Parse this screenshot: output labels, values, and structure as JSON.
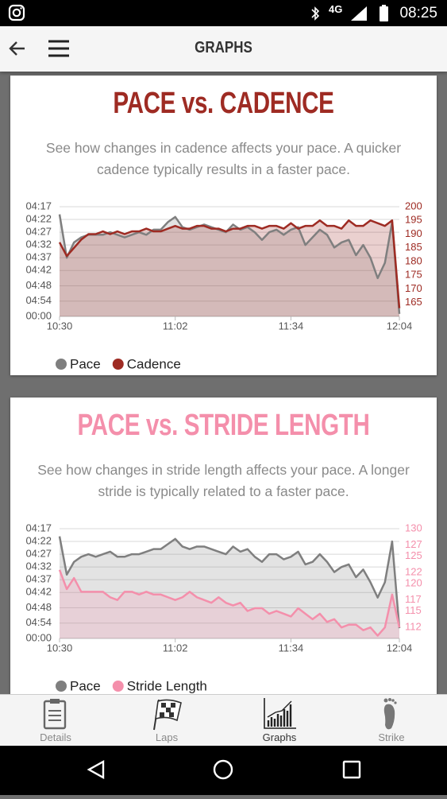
{
  "status_bar": {
    "network": "4G",
    "time": "08:25"
  },
  "header": {
    "title": "GRAPHS"
  },
  "chart_data": [
    {
      "type": "line",
      "title": "PACE vs. CADENCE",
      "subtitle": "See how changes in cadence affects your pace. A quicker cadence typically results in a faster pace.",
      "x": [
        630,
        632,
        634,
        636,
        638,
        640,
        642,
        644,
        646,
        648,
        650,
        652,
        654,
        656,
        658,
        660,
        662,
        664,
        666,
        668,
        670,
        672,
        674,
        676,
        678,
        680,
        682,
        684,
        686,
        688,
        690,
        692,
        694,
        696,
        698,
        700,
        702,
        704,
        706,
        708,
        710,
        712,
        714,
        716,
        718,
        720,
        722,
        724
      ],
      "xlim": [
        630,
        724
      ],
      "xticks": [
        {
          "value": 630,
          "label": "10:30"
        },
        {
          "value": 662,
          "label": "11:02"
        },
        {
          "value": 694,
          "label": "11:34"
        },
        {
          "value": 724,
          "label": "12:04"
        }
      ],
      "ylim": [
        300,
        257
      ],
      "yticks": [
        {
          "value": 257,
          "label": "04:17"
        },
        {
          "value": 262,
          "label": "04:22"
        },
        {
          "value": 267,
          "label": "04:27"
        },
        {
          "value": 272,
          "label": "04:32"
        },
        {
          "value": 277,
          "label": "04:37"
        },
        {
          "value": 282,
          "label": "04:42"
        },
        {
          "value": 288,
          "label": "04:48"
        },
        {
          "value": 294,
          "label": "04:54"
        },
        {
          "value": 300,
          "label": "00:00"
        }
      ],
      "y2lim": [
        160,
        200
      ],
      "y2ticks": [
        200,
        195,
        190,
        185,
        180,
        175,
        170,
        165
      ],
      "grid": true,
      "series": [
        {
          "name": "Pace",
          "color": "#7f7f7f",
          "values": [
            260,
            277,
            271,
            269,
            268,
            268,
            268,
            267,
            268,
            269,
            268,
            267,
            268,
            266,
            266,
            263,
            261,
            265,
            266,
            265,
            264,
            265,
            266,
            267,
            264,
            266,
            265,
            267,
            270,
            267,
            266,
            268,
            266,
            265,
            272,
            269,
            266,
            268,
            273,
            271,
            270,
            276,
            272,
            277,
            285,
            279,
            263,
            299
          ]
        },
        {
          "name": "Cadence",
          "color": "#9e2b23",
          "axis": "y2",
          "values": [
            187,
            182,
            185,
            188,
            190,
            190,
            191,
            190,
            191,
            190,
            191,
            191,
            192,
            191,
            191,
            192,
            193,
            192,
            192,
            193,
            193,
            192,
            192,
            191,
            192,
            192,
            193,
            193,
            192,
            193,
            193,
            192,
            194,
            192,
            193,
            193,
            195,
            193,
            193,
            192,
            195,
            193,
            193,
            195,
            194,
            193,
            195,
            163
          ]
        }
      ]
    },
    {
      "type": "line",
      "title": "PACE vs. STRIDE LENGTH",
      "subtitle": "See how changes in stride length affects your pace. A longer stride is typically related to a faster pace.",
      "x": [
        630,
        632,
        634,
        636,
        638,
        640,
        642,
        644,
        646,
        648,
        650,
        652,
        654,
        656,
        658,
        660,
        662,
        664,
        666,
        668,
        670,
        672,
        674,
        676,
        678,
        680,
        682,
        684,
        686,
        688,
        690,
        692,
        694,
        696,
        698,
        700,
        702,
        704,
        706,
        708,
        710,
        712,
        714,
        716,
        718,
        720,
        722,
        724
      ],
      "xlim": [
        630,
        724
      ],
      "xticks": [
        {
          "value": 630,
          "label": "10:30"
        },
        {
          "value": 662,
          "label": "11:02"
        },
        {
          "value": 694,
          "label": "11:34"
        },
        {
          "value": 724,
          "label": "12:04"
        }
      ],
      "ylim": [
        300,
        257
      ],
      "yticks": [
        {
          "value": 257,
          "label": "04:17"
        },
        {
          "value": 262,
          "label": "04:22"
        },
        {
          "value": 267,
          "label": "04:27"
        },
        {
          "value": 272,
          "label": "04:32"
        },
        {
          "value": 277,
          "label": "04:37"
        },
        {
          "value": 282,
          "label": "04:42"
        },
        {
          "value": 288,
          "label": "04:48"
        },
        {
          "value": 294,
          "label": "04:54"
        },
        {
          "value": 300,
          "label": "00:00"
        }
      ],
      "y2lim": [
        110,
        130
      ],
      "y2ticks": [
        130,
        127,
        125,
        122,
        120,
        117,
        115,
        112
      ],
      "grid": true,
      "series": [
        {
          "name": "Pace",
          "color": "#7f7f7f",
          "values": [
            260,
            275,
            270,
            268,
            267,
            268,
            267,
            266,
            268,
            268,
            267,
            267,
            266,
            265,
            265,
            263,
            261,
            264,
            265,
            264,
            264,
            265,
            266,
            267,
            264,
            266,
            265,
            268,
            270,
            267,
            267,
            269,
            268,
            266,
            271,
            270,
            267,
            270,
            274,
            272,
            271,
            276,
            273,
            278,
            284,
            278,
            262,
            296
          ]
        },
        {
          "name": "Stride Length",
          "color": "#f48fab",
          "axis": "y2",
          "values": [
            122.5,
            119,
            121,
            118.5,
            118.5,
            118.5,
            118.5,
            117.5,
            117,
            118.5,
            118.5,
            118,
            118.5,
            118,
            118,
            117.5,
            117,
            117.5,
            118.5,
            117.5,
            117,
            116.5,
            117.5,
            116.5,
            116,
            116.5,
            115,
            115.5,
            115.5,
            114.5,
            115,
            114.5,
            114,
            115.5,
            114.5,
            113.5,
            114.5,
            113,
            113.5,
            112,
            112.5,
            112.5,
            111.5,
            112,
            110.5,
            112,
            118,
            112
          ]
        }
      ]
    }
  ],
  "bottom_nav": {
    "items": [
      "Details",
      "Laps",
      "Graphs",
      "Strike"
    ]
  }
}
